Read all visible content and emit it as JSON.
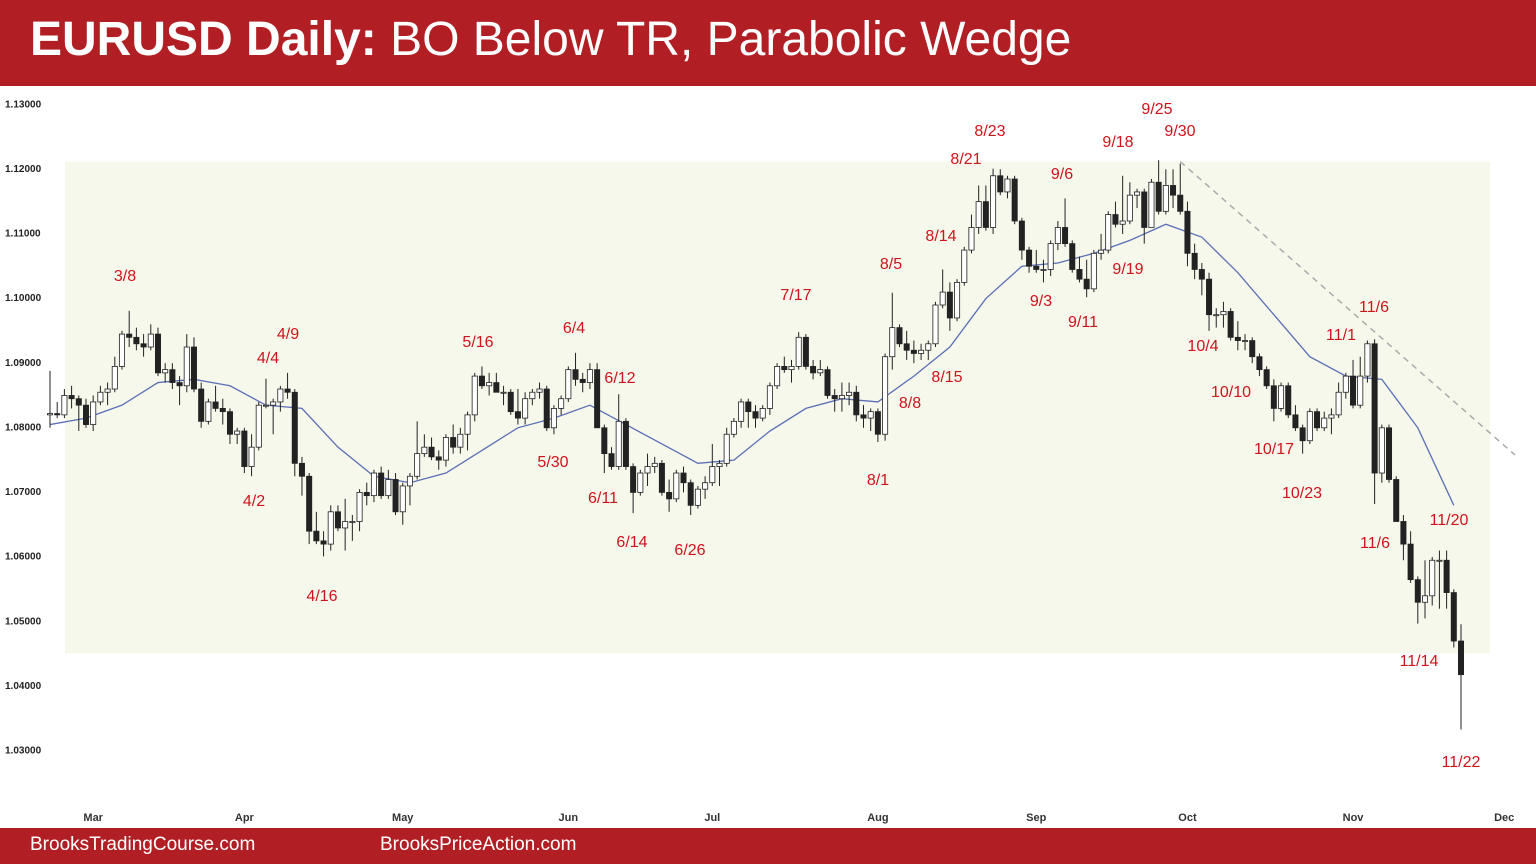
{
  "header": {
    "title_bold": "EURUSD Daily:",
    "title": "BO Below TR, Parabolic Wedge"
  },
  "footer": {
    "left": "BrooksTradingCourse.com",
    "right": "BrooksPriceAction.com"
  },
  "chart_data": {
    "type": "candlestick",
    "ylim": [
      1.0224,
      1.1315
    ],
    "yticks": [
      {
        "value": 1.03,
        "label": "1.03000"
      },
      {
        "value": 1.04,
        "label": "1.04000"
      },
      {
        "value": 1.05,
        "label": "1.05000"
      },
      {
        "value": 1.06,
        "label": "1.06000"
      },
      {
        "value": 1.07,
        "label": "1.07000"
      },
      {
        "value": 1.08,
        "label": "1.08000"
      },
      {
        "value": 1.09,
        "label": "1.09000"
      },
      {
        "value": 1.1,
        "label": "1.10000"
      },
      {
        "value": 1.11,
        "label": "1.11000"
      },
      {
        "value": 1.12,
        "label": "1.12000"
      },
      {
        "value": 1.13,
        "label": "1.13000"
      }
    ],
    "xlim": [
      -5,
      206
    ],
    "xticks": [
      {
        "value": 6,
        "label": "Mar"
      },
      {
        "value": 27,
        "label": "Apr"
      },
      {
        "value": 49,
        "label": "May"
      },
      {
        "value": 72,
        "label": "Jun"
      },
      {
        "value": 92,
        "label": "Jul"
      },
      {
        "value": 115,
        "label": "Aug"
      },
      {
        "value": 137,
        "label": "Sep"
      },
      {
        "value": 158,
        "label": "Oct"
      },
      {
        "value": 181,
        "label": "Nov"
      },
      {
        "value": 202,
        "label": "Dec"
      }
    ],
    "grid": false,
    "up_color": "#ffffff",
    "down_color": "#222222",
    "candles": [
      [
        1.082,
        1.0888,
        1.08,
        1.0822
      ],
      [
        1.0822,
        1.084,
        1.0815,
        1.082
      ],
      [
        1.082,
        1.086,
        1.0815,
        1.085
      ],
      [
        1.085,
        1.0865,
        1.083,
        1.0845
      ],
      [
        1.0845,
        1.085,
        1.0795,
        1.0835
      ],
      [
        1.0835,
        1.0845,
        1.08,
        1.0805
      ],
      [
        1.0805,
        1.085,
        1.0795,
        1.084
      ],
      [
        1.084,
        1.0865,
        1.0835,
        1.0855
      ],
      [
        1.0855,
        1.087,
        1.0835,
        1.086
      ],
      [
        1.086,
        1.091,
        1.0855,
        1.0895
      ],
      [
        1.0895,
        1.095,
        1.089,
        1.0945
      ],
      [
        1.0945,
        1.0981,
        1.0925,
        1.094
      ],
      [
        1.094,
        1.0955,
        1.092,
        1.093
      ],
      [
        1.093,
        1.0945,
        1.091,
        1.0925
      ],
      [
        1.0925,
        1.096,
        1.092,
        1.0945
      ],
      [
        1.0945,
        1.0955,
        1.088,
        1.0885
      ],
      [
        1.0885,
        1.09,
        1.087,
        1.089
      ],
      [
        1.089,
        1.09,
        1.086,
        1.087
      ],
      [
        1.087,
        1.088,
        1.0835,
        1.0865
      ],
      [
        1.0865,
        1.0945,
        1.0855,
        1.0925
      ],
      [
        1.0925,
        1.094,
        1.0855,
        1.086
      ],
      [
        1.086,
        1.087,
        1.08,
        1.081
      ],
      [
        1.081,
        1.0845,
        1.0805,
        1.084
      ],
      [
        1.084,
        1.0865,
        1.0825,
        1.083
      ],
      [
        1.083,
        1.0845,
        1.0805,
        1.0825
      ],
      [
        1.0825,
        1.083,
        1.0775,
        1.079
      ],
      [
        1.079,
        1.08,
        1.0775,
        1.0795
      ],
      [
        1.0795,
        1.08,
        1.073,
        1.074
      ],
      [
        1.074,
        1.079,
        1.0725,
        1.077
      ],
      [
        1.077,
        1.084,
        1.0765,
        1.0835
      ],
      [
        1.0835,
        1.0876,
        1.083,
        1.0835
      ],
      [
        1.0835,
        1.0845,
        1.079,
        1.084
      ],
      [
        1.084,
        1.0865,
        1.0825,
        1.086
      ],
      [
        1.086,
        1.0885,
        1.0845,
        1.0855
      ],
      [
        1.0855,
        1.086,
        1.0725,
        1.0745
      ],
      [
        1.0745,
        1.0755,
        1.0695,
        1.0725
      ],
      [
        1.0725,
        1.073,
        1.062,
        1.064
      ],
      [
        1.064,
        1.067,
        1.062,
        1.0625
      ],
      [
        1.0625,
        1.064,
        1.0601,
        1.062
      ],
      [
        1.062,
        1.068,
        1.061,
        1.067
      ],
      [
        1.067,
        1.068,
        1.064,
        1.0645
      ],
      [
        1.0645,
        1.069,
        1.061,
        1.0655
      ],
      [
        1.0655,
        1.0665,
        1.0625,
        1.0655
      ],
      [
        1.0655,
        1.0705,
        1.064,
        1.07
      ],
      [
        1.07,
        1.0715,
        1.068,
        1.0695
      ],
      [
        1.0695,
        1.0735,
        1.0685,
        1.073
      ],
      [
        1.073,
        1.074,
        1.069,
        1.0695
      ],
      [
        1.0695,
        1.0735,
        1.069,
        1.072
      ],
      [
        1.072,
        1.073,
        1.0665,
        1.067
      ],
      [
        1.067,
        1.0715,
        1.065,
        1.071
      ],
      [
        1.071,
        1.073,
        1.068,
        1.0725
      ],
      [
        1.0725,
        1.081,
        1.072,
        1.076
      ],
      [
        1.076,
        1.079,
        1.0755,
        1.077
      ],
      [
        1.077,
        1.0785,
        1.075,
        1.0755
      ],
      [
        1.0755,
        1.0765,
        1.0735,
        1.075
      ],
      [
        1.075,
        1.079,
        1.074,
        1.0785
      ],
      [
        1.0785,
        1.0805,
        1.076,
        1.077
      ],
      [
        1.077,
        1.08,
        1.076,
        1.079
      ],
      [
        1.079,
        1.0825,
        1.0765,
        1.082
      ],
      [
        1.082,
        1.0885,
        1.081,
        1.088
      ],
      [
        1.088,
        1.0895,
        1.086,
        1.0865
      ],
      [
        1.0865,
        1.0885,
        1.085,
        1.087
      ],
      [
        1.087,
        1.0885,
        1.0855,
        1.0855
      ],
      [
        1.0855,
        1.0865,
        1.0835,
        1.0855
      ],
      [
        1.0855,
        1.086,
        1.082,
        1.0825
      ],
      [
        1.0825,
        1.086,
        1.0805,
        1.0815
      ],
      [
        1.0815,
        1.0855,
        1.0805,
        1.0845
      ],
      [
        1.0845,
        1.086,
        1.0835,
        1.0855
      ],
      [
        1.0855,
        1.087,
        1.0845,
        1.086
      ],
      [
        1.086,
        1.0865,
        1.0795,
        1.08
      ],
      [
        1.08,
        1.0835,
        1.079,
        1.083
      ],
      [
        1.083,
        1.085,
        1.082,
        1.0845
      ],
      [
        1.0845,
        1.0895,
        1.084,
        1.089
      ],
      [
        1.089,
        1.0916,
        1.0865,
        1.0875
      ],
      [
        1.0875,
        1.0885,
        1.0855,
        1.087
      ],
      [
        1.087,
        1.09,
        1.086,
        1.089
      ],
      [
        1.089,
        1.09,
        1.08,
        1.08
      ],
      [
        1.08,
        1.0805,
        1.073,
        1.076
      ],
      [
        1.076,
        1.077,
        1.0735,
        1.074
      ],
      [
        1.074,
        1.0852,
        1.0735,
        1.081
      ],
      [
        1.081,
        1.0815,
        1.0735,
        1.074
      ],
      [
        1.074,
        1.0745,
        1.0668,
        1.07
      ],
      [
        1.07,
        1.0735,
        1.0695,
        1.073
      ],
      [
        1.073,
        1.076,
        1.071,
        1.074
      ],
      [
        1.074,
        1.0755,
        1.073,
        1.0745
      ],
      [
        1.0745,
        1.075,
        1.0695,
        1.07
      ],
      [
        1.07,
        1.072,
        1.067,
        1.069
      ],
      [
        1.069,
        1.0735,
        1.0685,
        1.073
      ],
      [
        1.073,
        1.074,
        1.07,
        1.0715
      ],
      [
        1.0715,
        1.072,
        1.0665,
        1.068
      ],
      [
        1.068,
        1.071,
        1.0675,
        1.0705
      ],
      [
        1.0705,
        1.0725,
        1.069,
        1.0715
      ],
      [
        1.0715,
        1.0775,
        1.071,
        1.074
      ],
      [
        1.074,
        1.075,
        1.071,
        1.0745
      ],
      [
        1.0745,
        1.08,
        1.074,
        1.079
      ],
      [
        1.079,
        1.0815,
        1.0785,
        1.081
      ],
      [
        1.081,
        1.0845,
        1.08,
        1.084
      ],
      [
        1.084,
        1.0845,
        1.08,
        1.0825
      ],
      [
        1.0825,
        1.0835,
        1.08,
        1.0815
      ],
      [
        1.0815,
        1.0835,
        1.081,
        1.083
      ],
      [
        1.083,
        1.087,
        1.082,
        1.0865
      ],
      [
        1.0865,
        1.09,
        1.086,
        1.0895
      ],
      [
        1.0895,
        1.091,
        1.0885,
        1.089
      ],
      [
        1.089,
        1.0905,
        1.087,
        1.0895
      ],
      [
        1.0895,
        1.0948,
        1.089,
        1.094
      ],
      [
        1.094,
        1.0945,
        1.089,
        1.0895
      ],
      [
        1.0895,
        1.0905,
        1.0875,
        1.0885
      ],
      [
        1.0885,
        1.0905,
        1.088,
        1.089
      ],
      [
        1.089,
        1.0895,
        1.0845,
        1.085
      ],
      [
        1.085,
        1.086,
        1.0825,
        1.0845
      ],
      [
        1.0845,
        1.087,
        1.0825,
        1.085
      ],
      [
        1.085,
        1.087,
        1.0835,
        1.0855
      ],
      [
        1.0855,
        1.0865,
        1.081,
        1.082
      ],
      [
        1.082,
        1.0835,
        1.08,
        1.0815
      ],
      [
        1.0815,
        1.083,
        1.0795,
        1.0825
      ],
      [
        1.0825,
        1.083,
        1.0778,
        1.079
      ],
      [
        1.079,
        1.0915,
        1.078,
        1.091
      ],
      [
        1.091,
        1.1009,
        1.089,
        1.0955
      ],
      [
        1.0955,
        1.096,
        1.0925,
        1.093
      ],
      [
        1.093,
        1.095,
        1.0905,
        1.092
      ],
      [
        1.092,
        1.0935,
        1.09,
        1.0915
      ],
      [
        1.0915,
        1.093,
        1.0905,
        1.092
      ],
      [
        1.092,
        1.0935,
        1.0905,
        1.093
      ],
      [
        1.093,
        1.0995,
        1.0925,
        1.099
      ],
      [
        1.099,
        1.1045,
        1.0985,
        1.101
      ],
      [
        1.101,
        1.1025,
        1.095,
        1.097
      ],
      [
        1.097,
        1.103,
        1.0965,
        1.1025
      ],
      [
        1.1025,
        1.108,
        1.102,
        1.1075
      ],
      [
        1.1075,
        1.113,
        1.107,
        1.111
      ],
      [
        1.111,
        1.1175,
        1.11,
        1.115
      ],
      [
        1.115,
        1.1175,
        1.1105,
        1.111
      ],
      [
        1.111,
        1.1201,
        1.11,
        1.119
      ],
      [
        1.119,
        1.12,
        1.116,
        1.1165
      ],
      [
        1.1165,
        1.119,
        1.1155,
        1.1185
      ],
      [
        1.1185,
        1.119,
        1.1115,
        1.112
      ],
      [
        1.112,
        1.1125,
        1.106,
        1.1075
      ],
      [
        1.1075,
        1.108,
        1.104,
        1.105
      ],
      [
        1.105,
        1.1075,
        1.104,
        1.1045
      ],
      [
        1.1045,
        1.106,
        1.1025,
        1.1045
      ],
      [
        1.1045,
        1.109,
        1.1035,
        1.1085
      ],
      [
        1.1085,
        1.112,
        1.1075,
        1.111
      ],
      [
        1.111,
        1.1155,
        1.108,
        1.1085
      ],
      [
        1.1085,
        1.109,
        1.104,
        1.1045
      ],
      [
        1.1045,
        1.1065,
        1.1025,
        1.103
      ],
      [
        1.103,
        1.106,
        1.1002,
        1.1015
      ],
      [
        1.1015,
        1.1075,
        1.101,
        1.107
      ],
      [
        1.107,
        1.11,
        1.106,
        1.1075
      ],
      [
        1.1075,
        1.1135,
        1.107,
        1.113
      ],
      [
        1.113,
        1.115,
        1.111,
        1.1115
      ],
      [
        1.1115,
        1.119,
        1.11,
        1.112
      ],
      [
        1.112,
        1.118,
        1.1115,
        1.116
      ],
      [
        1.116,
        1.117,
        1.114,
        1.1165
      ],
      [
        1.1165,
        1.117,
        1.1085,
        1.111
      ],
      [
        1.111,
        1.1185,
        1.111,
        1.118
      ],
      [
        1.118,
        1.1214,
        1.113,
        1.1135
      ],
      [
        1.1135,
        1.12,
        1.113,
        1.1175
      ],
      [
        1.1175,
        1.12,
        1.114,
        1.116
      ],
      [
        1.116,
        1.1209,
        1.113,
        1.1135
      ],
      [
        1.1135,
        1.115,
        1.105,
        1.107
      ],
      [
        1.107,
        1.1085,
        1.103,
        1.1045
      ],
      [
        1.1045,
        1.1055,
        1.1005,
        1.103
      ],
      [
        1.103,
        1.104,
        1.095,
        1.0975
      ],
      [
        1.0975,
        1.0985,
        1.0955,
        1.0975
      ],
      [
        1.0975,
        1.0995,
        1.0955,
        1.098
      ],
      [
        1.098,
        1.0985,
        1.0935,
        1.094
      ],
      [
        1.094,
        1.0965,
        1.092,
        1.0935
      ],
      [
        1.0935,
        1.0945,
        1.092,
        1.0935
      ],
      [
        1.0935,
        1.094,
        1.09,
        1.091
      ],
      [
        1.091,
        1.0915,
        1.088,
        1.089
      ],
      [
        1.089,
        1.0895,
        1.086,
        1.0865
      ],
      [
        1.0865,
        1.0875,
        1.081,
        1.083
      ],
      [
        1.083,
        1.087,
        1.0825,
        1.0865
      ],
      [
        1.0865,
        1.087,
        1.0815,
        1.082
      ],
      [
        1.082,
        1.0835,
        1.0795,
        1.08
      ],
      [
        1.08,
        1.0805,
        1.076,
        1.078
      ],
      [
        1.078,
        1.083,
        1.0775,
        1.0825
      ],
      [
        1.0825,
        1.083,
        1.0795,
        1.08
      ],
      [
        1.08,
        1.0825,
        1.0795,
        1.0815
      ],
      [
        1.0815,
        1.083,
        1.079,
        1.082
      ],
      [
        1.082,
        1.087,
        1.0815,
        1.0855
      ],
      [
        1.0855,
        1.0885,
        1.0845,
        1.088
      ],
      [
        1.088,
        1.0905,
        1.083,
        1.0835
      ],
      [
        1.0835,
        1.091,
        1.083,
        1.088
      ],
      [
        1.088,
        1.0935,
        1.087,
        1.093
      ],
      [
        1.093,
        1.0937,
        1.0682,
        1.073
      ],
      [
        1.073,
        1.0805,
        1.0715,
        1.08
      ],
      [
        1.08,
        1.0805,
        1.0715,
        1.072
      ],
      [
        1.072,
        1.0725,
        1.0655,
        1.0655
      ],
      [
        1.0655,
        1.0665,
        1.0595,
        1.062
      ],
      [
        1.062,
        1.064,
        1.056,
        1.0565
      ],
      [
        1.0565,
        1.057,
        1.0497,
        1.053
      ],
      [
        1.053,
        1.0595,
        1.0505,
        1.054
      ],
      [
        1.054,
        1.06,
        1.0525,
        1.0595
      ],
      [
        1.0595,
        1.061,
        1.052,
        1.0595
      ],
      [
        1.0595,
        1.061,
        1.052,
        1.0545
      ],
      [
        1.0545,
        1.055,
        1.046,
        1.047
      ],
      [
        1.047,
        1.0496,
        1.0333,
        1.0418
      ]
    ],
    "moving_average": {
      "color": "#5b6fb5",
      "x": [
        0,
        5,
        10,
        15,
        20,
        25,
        30,
        35,
        40,
        45,
        50,
        55,
        60,
        65,
        70,
        75,
        80,
        85,
        90,
        95,
        100,
        105,
        110,
        115,
        120,
        125,
        130,
        135,
        140,
        145,
        150,
        155,
        160,
        165,
        170,
        175,
        180,
        185,
        190,
        195
      ],
      "values": [
        1.0805,
        1.0815,
        1.0835,
        1.087,
        1.0875,
        1.0865,
        1.0835,
        1.083,
        1.077,
        1.0725,
        1.0715,
        1.073,
        1.0765,
        1.08,
        1.0815,
        1.0835,
        1.0805,
        1.0775,
        1.0745,
        1.075,
        1.0795,
        1.083,
        1.0845,
        1.084,
        1.088,
        1.0925,
        1.1,
        1.105,
        1.1055,
        1.107,
        1.109,
        1.1115,
        1.1095,
        1.104,
        1.0975,
        1.091,
        1.088,
        1.0875,
        1.08,
        1.068
      ]
    },
    "trading_range": {
      "ylim": [
        1.0451,
        1.1212
      ],
      "color": "#f6f8ec"
    },
    "trend_line": {
      "x": [
        157,
        203.5
      ],
      "values": [
        1.1212,
        1.0758
      ],
      "color": "#aaaaaa"
    },
    "annotations": [
      "3/8",
      "4/9",
      "4/4",
      "4/2",
      "4/16",
      "5/16",
      "6/4",
      "6/12",
      "5/30",
      "6/11",
      "6/14",
      "6/26",
      "7/17",
      "8/5",
      "8/14",
      "8/21",
      "8/23",
      "8/15",
      "8/8",
      "8/1",
      "9/6",
      "9/18",
      "9/25",
      "9/30",
      "9/19",
      "9/3",
      "9/11",
      "10/4",
      "10/10",
      "10/17",
      "10/23",
      "11/1",
      "11/6",
      "11/6",
      "11/20",
      "11/14",
      "11/22"
    ]
  }
}
